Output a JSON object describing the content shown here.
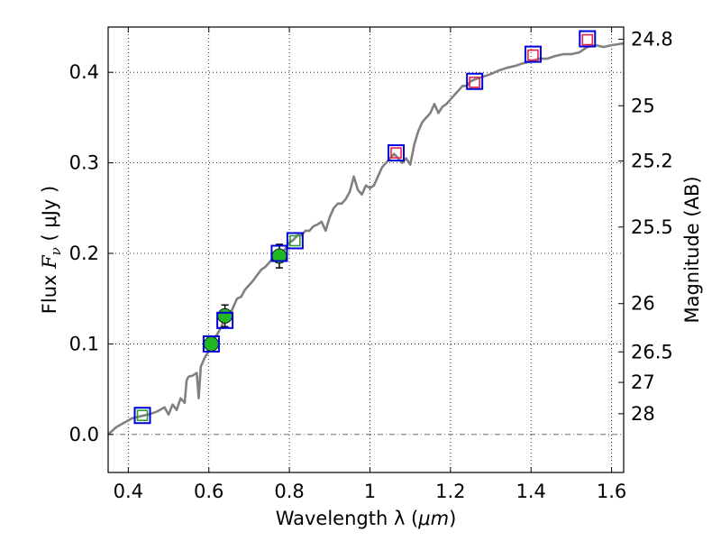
{
  "chart_data": {
    "type": "scatter",
    "title": "",
    "xlabel": {
      "text": "Wavelength  λ (",
      "unit": "μm",
      "close": ")"
    },
    "ylabel": {
      "text": "Flux  ",
      "symbol": "F",
      "sub": "ν",
      "unit": "  ( μJy )"
    },
    "y2label": "Magnitude (AB)",
    "xlim": [
      0.35,
      1.63
    ],
    "ylim": [
      -0.042,
      0.45
    ],
    "grid": true,
    "colors": {
      "model": "#808080",
      "observed": "#22b822",
      "observed_edge": "#000000",
      "model_box": "#0000dd",
      "synthetic_green": "#2e9e2e",
      "synthetic_red": "#e8234a",
      "zero_line": "#555555"
    },
    "x_ticks": [
      {
        "v": 0.4,
        "label": "0.4"
      },
      {
        "v": 0.6,
        "label": "0.6"
      },
      {
        "v": 0.8,
        "label": "0.8"
      },
      {
        "v": 1.0,
        "label": "1"
      },
      {
        "v": 1.2,
        "label": "1.2"
      },
      {
        "v": 1.4,
        "label": "1.4"
      },
      {
        "v": 1.6,
        "label": "1.6"
      }
    ],
    "y_ticks": [
      {
        "v": 0.0,
        "label": "0.0"
      },
      {
        "v": 0.1,
        "label": "0.1"
      },
      {
        "v": 0.2,
        "label": "0.2"
      },
      {
        "v": 0.3,
        "label": "0.3"
      },
      {
        "v": 0.4,
        "label": "0.4"
      }
    ],
    "mag_ticks": [
      {
        "v": 0.4365,
        "label": "24.8"
      },
      {
        "v": 0.3631,
        "label": "25"
      },
      {
        "v": 0.302,
        "label": "25.2"
      },
      {
        "v": 0.2291,
        "label": "25.5"
      },
      {
        "v": 0.1445,
        "label": "26"
      },
      {
        "v": 0.0912,
        "label": "26.5"
      },
      {
        "v": 0.0575,
        "label": "27"
      },
      {
        "v": 0.0229,
        "label": "28"
      }
    ],
    "series": [
      {
        "name": "model SED",
        "kind": "line",
        "x": [
          0.35,
          0.37,
          0.39,
          0.41,
          0.43,
          0.45,
          0.47,
          0.49,
          0.5,
          0.51,
          0.52,
          0.53,
          0.54,
          0.545,
          0.55,
          0.56,
          0.57,
          0.575,
          0.58,
          0.59,
          0.6,
          0.61,
          0.62,
          0.63,
          0.64,
          0.65,
          0.66,
          0.67,
          0.68,
          0.69,
          0.7,
          0.71,
          0.72,
          0.73,
          0.74,
          0.75,
          0.76,
          0.77,
          0.78,
          0.79,
          0.8,
          0.81,
          0.82,
          0.83,
          0.84,
          0.85,
          0.86,
          0.87,
          0.88,
          0.89,
          0.9,
          0.91,
          0.92,
          0.93,
          0.94,
          0.95,
          0.96,
          0.97,
          0.98,
          0.99,
          1.0,
          1.01,
          1.02,
          1.03,
          1.04,
          1.05,
          1.06,
          1.07,
          1.08,
          1.09,
          1.1,
          1.11,
          1.12,
          1.13,
          1.14,
          1.15,
          1.16,
          1.17,
          1.18,
          1.19,
          1.2,
          1.21,
          1.22,
          1.23,
          1.24,
          1.25,
          1.26,
          1.28,
          1.3,
          1.32,
          1.34,
          1.36,
          1.38,
          1.4,
          1.42,
          1.44,
          1.46,
          1.48,
          1.5,
          1.52,
          1.54,
          1.56,
          1.58,
          1.6,
          1.63
        ],
        "y": [
          0.0,
          0.008,
          0.013,
          0.018,
          0.02,
          0.022,
          0.025,
          0.03,
          0.022,
          0.033,
          0.027,
          0.04,
          0.035,
          0.06,
          0.064,
          0.065,
          0.068,
          0.04,
          0.075,
          0.085,
          0.092,
          0.105,
          0.11,
          0.118,
          0.128,
          0.13,
          0.14,
          0.15,
          0.152,
          0.16,
          0.165,
          0.17,
          0.176,
          0.182,
          0.185,
          0.19,
          0.195,
          0.19,
          0.2,
          0.205,
          0.212,
          0.215,
          0.22,
          0.22,
          0.225,
          0.225,
          0.23,
          0.232,
          0.235,
          0.225,
          0.24,
          0.25,
          0.255,
          0.255,
          0.26,
          0.268,
          0.285,
          0.27,
          0.265,
          0.275,
          0.272,
          0.275,
          0.285,
          0.295,
          0.3,
          0.305,
          0.31,
          0.305,
          0.3,
          0.305,
          0.298,
          0.32,
          0.335,
          0.345,
          0.35,
          0.355,
          0.365,
          0.355,
          0.362,
          0.365,
          0.37,
          0.375,
          0.38,
          0.385,
          0.385,
          0.39,
          0.392,
          0.395,
          0.398,
          0.402,
          0.405,
          0.407,
          0.41,
          0.412,
          0.415,
          0.415,
          0.418,
          0.42,
          0.42,
          0.422,
          0.428,
          0.43,
          0.428,
          0.43,
          0.432
        ]
      },
      {
        "name": "observed photometry",
        "kind": "errorbar",
        "points": [
          {
            "x": 0.606,
            "y": 0.1,
            "err": 0.005
          },
          {
            "x": 0.64,
            "y": 0.131,
            "err": 0.012
          },
          {
            "x": 0.775,
            "y": 0.197,
            "err": 0.013
          }
        ]
      },
      {
        "name": "model band flux",
        "kind": "square",
        "points": [
          {
            "x": 0.435,
            "y": 0.021
          },
          {
            "x": 0.606,
            "y": 0.1
          },
          {
            "x": 0.64,
            "y": 0.126
          },
          {
            "x": 0.775,
            "y": 0.2
          },
          {
            "x": 0.814,
            "y": 0.214
          },
          {
            "x": 1.065,
            "y": 0.311
          },
          {
            "x": 1.26,
            "y": 0.39
          },
          {
            "x": 1.405,
            "y": 0.42
          },
          {
            "x": 1.54,
            "y": 0.437
          }
        ]
      },
      {
        "name": "synthetic photometry",
        "kind": "square-small",
        "points": [
          {
            "x": 0.435,
            "y": 0.021,
            "c": "green"
          },
          {
            "x": 0.814,
            "y": 0.214,
            "c": "green"
          },
          {
            "x": 1.065,
            "y": 0.311,
            "c": "red"
          },
          {
            "x": 1.26,
            "y": 0.389,
            "c": "red"
          },
          {
            "x": 1.405,
            "y": 0.419,
            "c": "red"
          },
          {
            "x": 1.54,
            "y": 0.436,
            "c": "red"
          }
        ]
      }
    ]
  }
}
